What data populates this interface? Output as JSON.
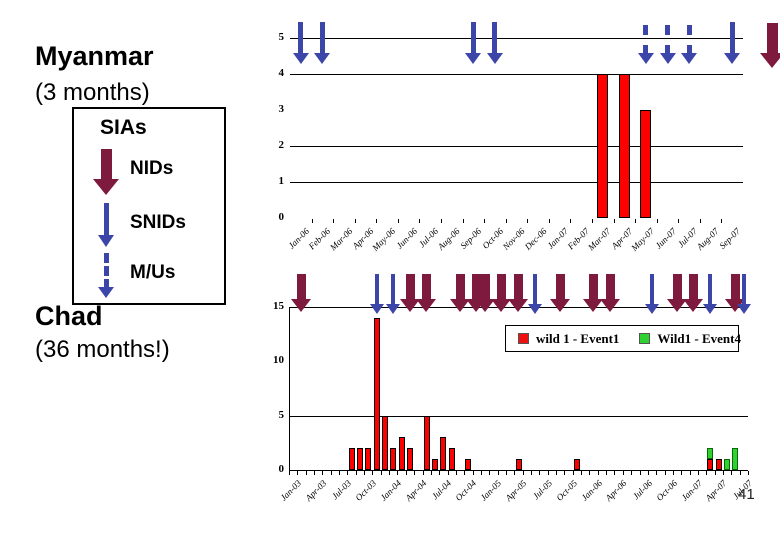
{
  "slide": {
    "page_number": "41",
    "background": "#ffffff"
  },
  "left_panel": {
    "sections": [
      {
        "title": "Myanmar",
        "subtitle": "(3 months)"
      },
      {
        "title": "Chad",
        "subtitle": "(36 months!)"
      }
    ],
    "sia_legend": {
      "title": "SIAs",
      "items": [
        {
          "label": "NIDs",
          "arrow_type": "NID",
          "arrow_style": "maroon-solid"
        },
        {
          "label": "SNIDs",
          "arrow_type": "SNID",
          "arrow_style": "blue-solid"
        },
        {
          "label": "M/Us",
          "arrow_type": "MU",
          "arrow_style": "blue-dashed"
        }
      ]
    }
  },
  "colors": {
    "nid_arrow": "#7d1a3e",
    "snid_arrow": "#3b46a8",
    "bar_red": "#ff0000",
    "bar_red_border": "#000000",
    "bar_green": "#2fd331",
    "bar_green_border": "#0b650b",
    "legend_red": "#ee1111",
    "legend_green": "#2fd331",
    "grid": "#000000"
  },
  "chart_data": [
    {
      "id": "myanmar",
      "type": "bar",
      "country": "Myanmar",
      "categories": [
        "Jan-06",
        "Feb-06",
        "Mar-06",
        "Apr-06",
        "May-06",
        "Jun-06",
        "Jul-06",
        "Aug-06",
        "Sep-06",
        "Oct-06",
        "Nov-06",
        "Dec-06",
        "Jan-07",
        "Feb-07",
        "Mar-07",
        "Apr-07",
        "May-07",
        "Jun-07",
        "Jul-07",
        "Aug-07",
        "Sep-07"
      ],
      "bars": [
        {
          "month": "Mar-07",
          "i": 14,
          "value": 4
        },
        {
          "month": "Apr-07",
          "i": 15,
          "value": 4
        },
        {
          "month": "May-07",
          "i": 16,
          "value": 3
        }
      ],
      "ylim": [
        0,
        5
      ],
      "yticks": [
        5,
        4,
        3,
        2,
        1,
        0
      ],
      "gridlines": [
        5,
        4,
        2,
        1
      ],
      "arrows": [
        {
          "month": "Jan-06",
          "i": 0,
          "type": "SNID"
        },
        {
          "month": "Feb-06",
          "i": 1,
          "type": "SNID"
        },
        {
          "month": "Sep-06",
          "i": 8,
          "type": "SNID"
        },
        {
          "month": "Oct-06",
          "i": 9,
          "type": "SNID"
        },
        {
          "month": "May-07",
          "i": 16,
          "type": "MU"
        },
        {
          "month": "Jun-07",
          "i": 17,
          "type": "MU"
        },
        {
          "month": "Jul-07",
          "i": 18,
          "type": "MU"
        },
        {
          "month": "Sep-07",
          "i": 20,
          "type": "SNID"
        },
        {
          "month": "off-chart-right",
          "i": null,
          "type": "NID"
        }
      ]
    },
    {
      "id": "chad",
      "type": "stacked-bar",
      "country": "Chad",
      "x_start": "Jan-03",
      "x_end": "Jul-07",
      "months_total": 55,
      "tick_labels": [
        {
          "i": 0,
          "label": "Jan-03"
        },
        {
          "i": 3,
          "label": "Apr-03"
        },
        {
          "i": 6,
          "label": "Jul-03"
        },
        {
          "i": 9,
          "label": "Oct-03"
        },
        {
          "i": 12,
          "label": "Jan-04"
        },
        {
          "i": 15,
          "label": "Apr-04"
        },
        {
          "i": 18,
          "label": "Jul-04"
        },
        {
          "i": 21,
          "label": "Oct-04"
        },
        {
          "i": 24,
          "label": "Jan-05"
        },
        {
          "i": 27,
          "label": "Apr-05"
        },
        {
          "i": 30,
          "label": "Jul-05"
        },
        {
          "i": 33,
          "label": "Oct-05"
        },
        {
          "i": 36,
          "label": "Jan-06"
        },
        {
          "i": 39,
          "label": "Apr-06"
        },
        {
          "i": 42,
          "label": "Jul-06"
        },
        {
          "i": 45,
          "label": "Oct-06"
        },
        {
          "i": 48,
          "label": "Jan-07"
        },
        {
          "i": 51,
          "label": "Apr-07"
        },
        {
          "i": 54,
          "label": "Jul-07"
        }
      ],
      "ylim": [
        0,
        15
      ],
      "yticks": [
        15,
        10,
        5,
        0
      ],
      "gridlines": [
        15,
        5
      ],
      "legend": [
        {
          "label": "wild 1 - Event1",
          "series": "red"
        },
        {
          "label": "Wild1 - Event4",
          "series": "green"
        }
      ],
      "bars": [
        {
          "month": "Aug-03",
          "i": 7,
          "red": 2,
          "green": 0
        },
        {
          "month": "Sep-03",
          "i": 8,
          "red": 2,
          "green": 0
        },
        {
          "month": "Oct-03",
          "i": 9,
          "red": 2,
          "green": 0
        },
        {
          "month": "Nov-03",
          "i": 10,
          "red": 14,
          "green": 0
        },
        {
          "month": "Dec-03",
          "i": 11,
          "red": 5,
          "green": 0
        },
        {
          "month": "Jan-04",
          "i": 12,
          "red": 2,
          "green": 0
        },
        {
          "month": "Feb-04",
          "i": 13,
          "red": 3,
          "green": 0
        },
        {
          "month": "Mar-04",
          "i": 14,
          "red": 2,
          "green": 0
        },
        {
          "month": "May-04",
          "i": 16,
          "red": 5,
          "green": 0
        },
        {
          "month": "Jun-04",
          "i": 17,
          "red": 1,
          "green": 0
        },
        {
          "month": "Jul-04",
          "i": 18,
          "red": 3,
          "green": 0
        },
        {
          "month": "Aug-04",
          "i": 19,
          "red": 2,
          "green": 0
        },
        {
          "month": "Oct-04",
          "i": 21,
          "red": 1,
          "green": 0
        },
        {
          "month": "Apr-05",
          "i": 27,
          "red": 1,
          "green": 0
        },
        {
          "month": "Nov-05",
          "i": 34,
          "red": 1,
          "green": 0
        },
        {
          "month": "Mar-07",
          "i": 50,
          "red": 1,
          "green": 1
        },
        {
          "month": "Apr-07",
          "i": 51,
          "red": 1,
          "green": 0
        },
        {
          "month": "May-07",
          "i": 52,
          "red": 0,
          "green": 1
        },
        {
          "month": "Jun-07",
          "i": 53,
          "red": 0,
          "green": 2
        }
      ],
      "arrows": [
        {
          "month": "Feb-03",
          "i": 1,
          "type": "NID"
        },
        {
          "month": "Nov-03",
          "i": 10,
          "type": "SNID"
        },
        {
          "month": "Jan-04",
          "i": 12,
          "type": "SNID"
        },
        {
          "month": "Mar-04",
          "i": 14,
          "type": "NID"
        },
        {
          "month": "May-04",
          "i": 16,
          "type": "NID"
        },
        {
          "month": "Sep-04",
          "i": 20,
          "type": "NID"
        },
        {
          "month": "Nov-04",
          "i": 22,
          "type": "NID"
        },
        {
          "month": "Dec-04",
          "i": 23,
          "type": "NID"
        },
        {
          "month": "Feb-05",
          "i": 25,
          "type": "NID"
        },
        {
          "month": "Apr-05",
          "i": 27,
          "type": "NID"
        },
        {
          "month": "Jun-05",
          "i": 29,
          "type": "SNID"
        },
        {
          "month": "Sep-05",
          "i": 32,
          "type": "NID"
        },
        {
          "month": "Jan-06",
          "i": 36,
          "type": "NID"
        },
        {
          "month": "Mar-06",
          "i": 38,
          "type": "NID"
        },
        {
          "month": "Aug-06",
          "i": 43,
          "type": "SNID"
        },
        {
          "month": "Nov-06",
          "i": 46,
          "type": "NID"
        },
        {
          "month": "Jan-07",
          "i": 48,
          "type": "NID"
        },
        {
          "month": "Mar-07",
          "i": 50,
          "type": "SNID"
        },
        {
          "month": "Jun-07",
          "i": 53,
          "type": "NID"
        },
        {
          "month": "Jul-07",
          "i": 54,
          "type": "SNID"
        }
      ]
    }
  ]
}
